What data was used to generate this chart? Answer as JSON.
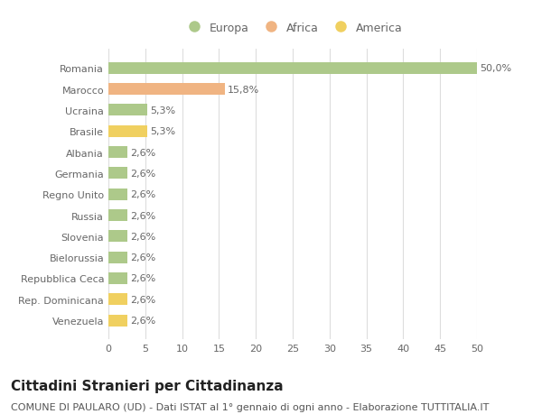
{
  "countries": [
    "Romania",
    "Marocco",
    "Ucraina",
    "Brasile",
    "Albania",
    "Germania",
    "Regno Unito",
    "Russia",
    "Slovenia",
    "Bielorussia",
    "Repubblica Ceca",
    "Rep. Dominicana",
    "Venezuela"
  ],
  "values": [
    50.0,
    15.8,
    5.3,
    5.3,
    2.6,
    2.6,
    2.6,
    2.6,
    2.6,
    2.6,
    2.6,
    2.6,
    2.6
  ],
  "labels": [
    "50,0%",
    "15,8%",
    "5,3%",
    "5,3%",
    "2,6%",
    "2,6%",
    "2,6%",
    "2,6%",
    "2,6%",
    "2,6%",
    "2,6%",
    "2,6%",
    "2,6%"
  ],
  "colors": [
    "#adc98a",
    "#f0b482",
    "#adc98a",
    "#f0d060",
    "#adc98a",
    "#adc98a",
    "#adc98a",
    "#adc98a",
    "#adc98a",
    "#adc98a",
    "#adc98a",
    "#f0d060",
    "#f0d060"
  ],
  "legend": [
    {
      "label": "Europa",
      "color": "#adc98a"
    },
    {
      "label": "Africa",
      "color": "#f0b482"
    },
    {
      "label": "America",
      "color": "#f0d060"
    }
  ],
  "xlim": [
    0,
    50
  ],
  "xticks": [
    0,
    5,
    10,
    15,
    20,
    25,
    30,
    35,
    40,
    45,
    50
  ],
  "title": "Cittadini Stranieri per Cittadinanza",
  "subtitle": "COMUNE DI PAULARO (UD) - Dati ISTAT al 1° gennaio di ogni anno - Elaborazione TUTTITALIA.IT",
  "bg_color": "#ffffff",
  "grid_color": "#dddddd",
  "bar_height": 0.55,
  "title_fontsize": 11,
  "subtitle_fontsize": 8,
  "label_fontsize": 8,
  "tick_fontsize": 8,
  "legend_fontsize": 9
}
